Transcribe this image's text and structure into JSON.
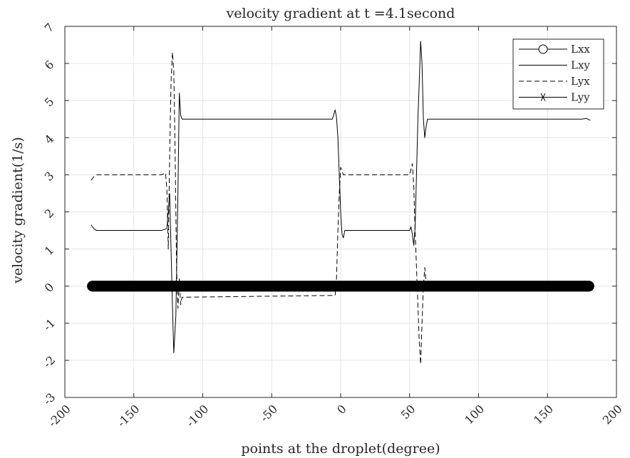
{
  "chart_data": {
    "type": "line",
    "title": "velocity gradient at t =4.1second",
    "xlabel": "points at the droplet(degree)",
    "ylabel": "velocity gradient(1/s)",
    "xlim": [
      -200,
      200
    ],
    "ylim": [
      -3,
      7
    ],
    "x_ticks": [
      -200,
      -150,
      -100,
      -50,
      0,
      50,
      100,
      150,
      200
    ],
    "y_ticks": [
      -3,
      -2,
      -1,
      0,
      1,
      2,
      3,
      4,
      5,
      6,
      7
    ],
    "x_tick_labels": [
      "-200",
      "-150",
      "-100",
      "-50",
      "0",
      "50",
      "100",
      "150",
      "200"
    ],
    "y_tick_labels": [
      "-3",
      "-2",
      "-1",
      "0",
      "1",
      "2",
      "3",
      "4",
      "5",
      "6",
      "7"
    ],
    "grid": true,
    "legend_position": "top-right",
    "series": [
      {
        "name": "Lxx",
        "style": "solid-circle",
        "color": "#000000",
        "x": [
          -180,
          -120,
          -60,
          0,
          60,
          120,
          180
        ],
        "y": [
          0,
          0,
          0,
          0,
          0,
          0,
          0
        ]
      },
      {
        "name": "Lxy",
        "style": "solid",
        "color": "#000000",
        "x": [
          -181,
          -179,
          -177,
          -175,
          -150,
          -130,
          -126,
          -124,
          -123,
          -122,
          -121,
          -119.5,
          -118,
          -117,
          -116,
          -115,
          -113,
          -110,
          -60,
          -6,
          -4,
          -3,
          -2,
          -1,
          0,
          1,
          2,
          3,
          5,
          10,
          30,
          50,
          51,
          52,
          53,
          54,
          55,
          56,
          57,
          58,
          59,
          60,
          61,
          62,
          63,
          65,
          100,
          160,
          175,
          178,
          181
        ],
        "y": [
          1.65,
          1.55,
          1.5,
          1.5,
          1.5,
          1.5,
          1.55,
          2.5,
          1.0,
          -0.5,
          -1.8,
          -0.8,
          2.5,
          5.2,
          4.6,
          4.5,
          4.5,
          4.5,
          4.5,
          4.5,
          4.75,
          4.55,
          4.0,
          3.0,
          2.0,
          1.4,
          1.3,
          1.5,
          1.5,
          1.5,
          1.5,
          1.5,
          1.6,
          1.4,
          1.1,
          1.6,
          3.0,
          4.5,
          5.5,
          6.6,
          6.0,
          4.5,
          4.0,
          4.3,
          4.5,
          4.5,
          4.5,
          4.5,
          4.5,
          4.52,
          4.47
        ]
      },
      {
        "name": "Lyx",
        "style": "dashed",
        "color": "#000000",
        "x": [
          -181,
          -179,
          -177,
          -175,
          -150,
          -130,
          -127,
          -126,
          -125,
          -124,
          -123,
          -122,
          -121,
          -120,
          -119,
          -118,
          -117,
          -116,
          -115,
          -4,
          -3,
          -2,
          -1,
          0,
          1,
          2,
          4,
          10,
          30,
          50,
          52,
          53,
          54,
          55,
          56,
          57,
          58,
          59,
          60,
          61,
          62
        ],
        "y": [
          2.85,
          2.95,
          3.0,
          3.0,
          3.0,
          3.0,
          3.05,
          2.6,
          1.0,
          3.5,
          5.5,
          6.3,
          5.8,
          3.5,
          0.5,
          -0.6,
          0.2,
          -0.5,
          -0.3,
          -0.25,
          0.2,
          1.5,
          2.5,
          3.2,
          3.1,
          3.0,
          3.0,
          3.0,
          3.0,
          3.0,
          3.3,
          2.7,
          1.5,
          0.5,
          -0.5,
          -1.5,
          -2.1,
          -1.0,
          0.0,
          0.5,
          0.1
        ]
      },
      {
        "name": "Lyy",
        "style": "solid-star",
        "color": "#000000",
        "x": [
          -180,
          -120,
          -60,
          0,
          60,
          120,
          180
        ],
        "y": [
          0,
          0,
          0,
          0,
          0,
          0,
          0
        ]
      }
    ]
  }
}
